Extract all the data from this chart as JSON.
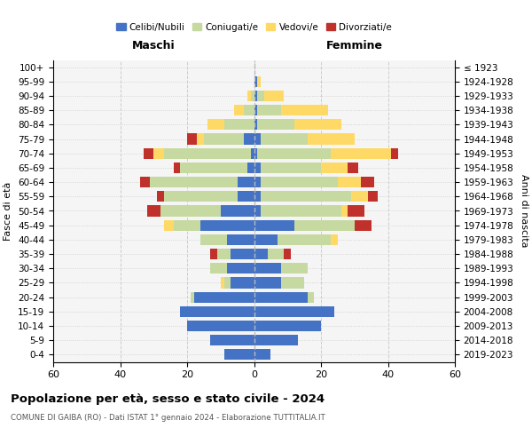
{
  "age_groups": [
    "0-4",
    "5-9",
    "10-14",
    "15-19",
    "20-24",
    "25-29",
    "30-34",
    "35-39",
    "40-44",
    "45-49",
    "50-54",
    "55-59",
    "60-64",
    "65-69",
    "70-74",
    "75-79",
    "80-84",
    "85-89",
    "90-94",
    "95-99",
    "100+"
  ],
  "birth_years": [
    "2019-2023",
    "2014-2018",
    "2009-2013",
    "2004-2008",
    "1999-2003",
    "1994-1998",
    "1989-1993",
    "1984-1988",
    "1979-1983",
    "1974-1978",
    "1969-1973",
    "1964-1968",
    "1959-1963",
    "1954-1958",
    "1949-1953",
    "1944-1948",
    "1939-1943",
    "1934-1938",
    "1929-1933",
    "1924-1928",
    "≤ 1923"
  ],
  "colors": {
    "celibi": "#4472C4",
    "coniugati": "#c5d9a0",
    "vedovi": "#ffd966",
    "divorziati": "#c0312b"
  },
  "maschi": {
    "celibi": [
      9,
      13,
      20,
      22,
      18,
      7,
      8,
      7,
      8,
      16,
      10,
      5,
      5,
      2,
      1,
      3,
      0,
      0,
      0,
      0,
      0
    ],
    "coniugati": [
      0,
      0,
      0,
      0,
      1,
      2,
      5,
      4,
      8,
      8,
      18,
      22,
      26,
      20,
      26,
      12,
      9,
      3,
      1,
      0,
      0
    ],
    "vedovi": [
      0,
      0,
      0,
      0,
      0,
      1,
      0,
      0,
      0,
      3,
      0,
      0,
      0,
      0,
      3,
      2,
      5,
      3,
      1,
      0,
      0
    ],
    "divorziati": [
      0,
      0,
      0,
      0,
      0,
      0,
      0,
      2,
      0,
      0,
      4,
      2,
      3,
      2,
      3,
      3,
      0,
      0,
      0,
      0,
      0
    ]
  },
  "femmine": {
    "celibi": [
      5,
      13,
      20,
      24,
      16,
      8,
      8,
      4,
      7,
      12,
      2,
      2,
      2,
      2,
      1,
      2,
      1,
      1,
      1,
      1,
      0
    ],
    "coniugati": [
      0,
      0,
      0,
      0,
      2,
      7,
      8,
      5,
      16,
      18,
      24,
      27,
      23,
      18,
      22,
      14,
      11,
      7,
      2,
      0,
      0
    ],
    "vedovi": [
      0,
      0,
      0,
      0,
      0,
      0,
      0,
      0,
      2,
      0,
      2,
      5,
      7,
      8,
      18,
      14,
      14,
      14,
      6,
      1,
      0
    ],
    "divorziati": [
      0,
      0,
      0,
      0,
      0,
      0,
      0,
      2,
      0,
      5,
      5,
      3,
      4,
      3,
      2,
      0,
      0,
      0,
      0,
      0,
      0
    ]
  },
  "xlim": 60,
  "title_main": "Popolazione per età, sesso e stato civile - 2024",
  "title_sub": "COMUNE DI GAIBA (RO) - Dati ISTAT 1° gennaio 2024 - Elaborazione TUTTITALIA.IT",
  "ylabel_left": "Fasce di età",
  "ylabel_right": "Anni di nascita",
  "label_maschi": "Maschi",
  "label_femmine": "Femmine",
  "legend_labels": [
    "Celibi/Nubili",
    "Coniugati/e",
    "Vedovi/e",
    "Divorziati/e"
  ]
}
